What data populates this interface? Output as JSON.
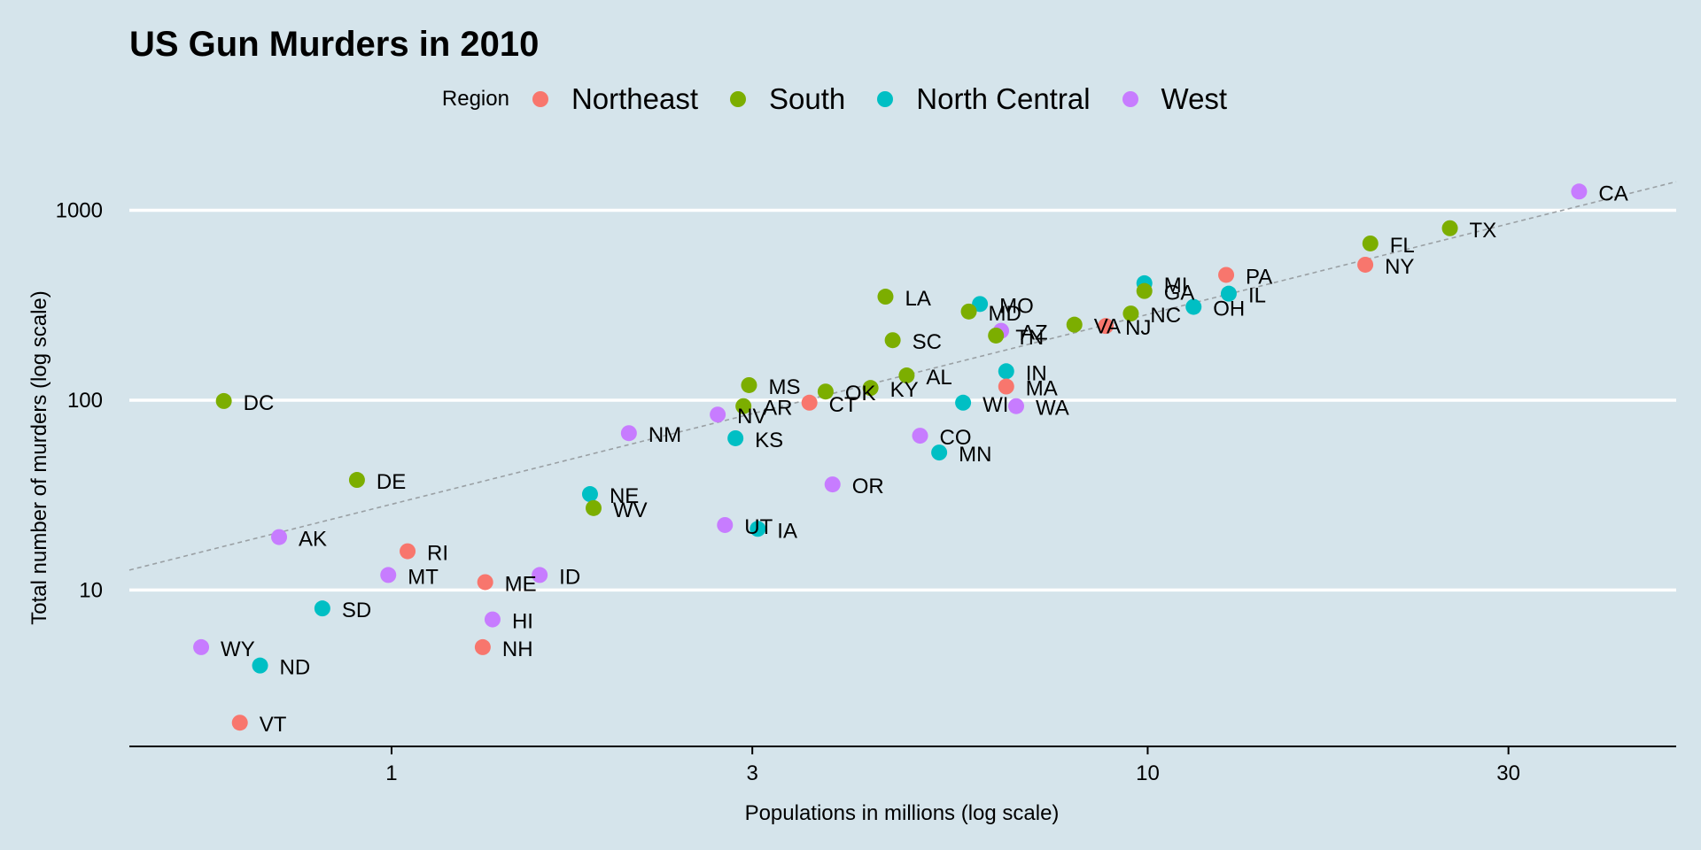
{
  "chart_data": {
    "type": "scatter",
    "title": "US Gun Murders in 2010",
    "xlabel": "Populations in millions (log scale)",
    "ylabel": "Total number of murders (log scale)",
    "x_scale": "log10",
    "y_scale": "log10",
    "xlim": [
      0.45,
      50
    ],
    "ylim": [
      1.5,
      2300
    ],
    "x_ticks": [
      1,
      3,
      10,
      30
    ],
    "x_tick_labels": [
      "1",
      "3",
      "10",
      "30"
    ],
    "y_ticks": [
      10,
      100,
      1000
    ],
    "y_tick_labels": [
      "10",
      "100",
      "1000"
    ],
    "grid": "horizontal major",
    "legend": {
      "title": "Region",
      "position": "top",
      "entries": [
        {
          "name": "Northeast",
          "color": "#f8766d"
        },
        {
          "name": "South",
          "color": "#7cae00"
        },
        {
          "name": "North Central",
          "color": "#00bfc4"
        },
        {
          "name": "West",
          "color": "#c77cff"
        }
      ]
    },
    "reference_line": {
      "style": "dashed",
      "color": "#9aa0a4",
      "description": "national average murder rate",
      "slope": 1,
      "intercept_rate": 28.3
    },
    "points": [
      {
        "label": "CA",
        "region": "West",
        "x": 37.2,
        "y": 1257
      },
      {
        "label": "TX",
        "region": "South",
        "x": 25.1,
        "y": 805
      },
      {
        "label": "FL",
        "region": "South",
        "x": 19.7,
        "y": 669
      },
      {
        "label": "NY",
        "region": "Northeast",
        "x": 19.4,
        "y": 517
      },
      {
        "label": "PA",
        "region": "Northeast",
        "x": 12.7,
        "y": 457
      },
      {
        "label": "MI",
        "region": "North Central",
        "x": 9.9,
        "y": 413
      },
      {
        "label": "GA",
        "region": "South",
        "x": 9.9,
        "y": 376
      },
      {
        "label": "IL",
        "region": "North Central",
        "x": 12.8,
        "y": 364
      },
      {
        "label": "OH",
        "region": "North Central",
        "x": 11.5,
        "y": 310
      },
      {
        "label": "NC",
        "region": "South",
        "x": 9.5,
        "y": 286
      },
      {
        "label": "NJ",
        "region": "Northeast",
        "x": 8.8,
        "y": 246
      },
      {
        "label": "VA",
        "region": "South",
        "x": 8.0,
        "y": 250
      },
      {
        "label": "LA",
        "region": "South",
        "x": 4.5,
        "y": 351
      },
      {
        "label": "MO",
        "region": "North Central",
        "x": 6.0,
        "y": 321
      },
      {
        "label": "MD",
        "region": "South",
        "x": 5.8,
        "y": 293
      },
      {
        "label": "AZ",
        "region": "West",
        "x": 6.4,
        "y": 232
      },
      {
        "label": "TN",
        "region": "South",
        "x": 6.3,
        "y": 219
      },
      {
        "label": "SC",
        "region": "South",
        "x": 4.6,
        "y": 207
      },
      {
        "label": "IN",
        "region": "North Central",
        "x": 6.5,
        "y": 142
      },
      {
        "label": "AL",
        "region": "South",
        "x": 4.8,
        "y": 135
      },
      {
        "label": "MA",
        "region": "Northeast",
        "x": 6.5,
        "y": 118
      },
      {
        "label": "MS",
        "region": "South",
        "x": 2.97,
        "y": 120
      },
      {
        "label": "OK",
        "region": "South",
        "x": 3.75,
        "y": 111
      },
      {
        "label": "KY",
        "region": "South",
        "x": 4.3,
        "y": 116
      },
      {
        "label": "WI",
        "region": "North Central",
        "x": 5.7,
        "y": 97
      },
      {
        "label": "WA",
        "region": "West",
        "x": 6.7,
        "y": 93
      },
      {
        "label": "CT",
        "region": "Northeast",
        "x": 3.57,
        "y": 97
      },
      {
        "label": "AR",
        "region": "South",
        "x": 2.92,
        "y": 93
      },
      {
        "label": "NV",
        "region": "West",
        "x": 2.7,
        "y": 84
      },
      {
        "label": "DC",
        "region": "South",
        "x": 0.6,
        "y": 99
      },
      {
        "label": "NM",
        "region": "West",
        "x": 2.06,
        "y": 67
      },
      {
        "label": "KS",
        "region": "North Central",
        "x": 2.85,
        "y": 63
      },
      {
        "label": "CO",
        "region": "West",
        "x": 5.0,
        "y": 65
      },
      {
        "label": "MN",
        "region": "North Central",
        "x": 5.3,
        "y": 53
      },
      {
        "label": "OR",
        "region": "West",
        "x": 3.83,
        "y": 36
      },
      {
        "label": "DE",
        "region": "South",
        "x": 0.9,
        "y": 38
      },
      {
        "label": "NE",
        "region": "North Central",
        "x": 1.83,
        "y": 32
      },
      {
        "label": "WV",
        "region": "South",
        "x": 1.85,
        "y": 27
      },
      {
        "label": "UT",
        "region": "West",
        "x": 2.76,
        "y": 22
      },
      {
        "label": "IA",
        "region": "North Central",
        "x": 3.05,
        "y": 21
      },
      {
        "label": "AK",
        "region": "West",
        "x": 0.71,
        "y": 19
      },
      {
        "label": "RI",
        "region": "Northeast",
        "x": 1.05,
        "y": 16
      },
      {
        "label": "MT",
        "region": "West",
        "x": 0.99,
        "y": 12
      },
      {
        "label": "ID",
        "region": "West",
        "x": 1.57,
        "y": 12
      },
      {
        "label": "ME",
        "region": "Northeast",
        "x": 1.33,
        "y": 11
      },
      {
        "label": "SD",
        "region": "North Central",
        "x": 0.81,
        "y": 8
      },
      {
        "label": "HI",
        "region": "West",
        "x": 1.36,
        "y": 7
      },
      {
        "label": "NH",
        "region": "Northeast",
        "x": 1.32,
        "y": 5
      },
      {
        "label": "WY",
        "region": "West",
        "x": 0.56,
        "y": 5
      },
      {
        "label": "ND",
        "region": "North Central",
        "x": 0.67,
        "y": 4
      },
      {
        "label": "VT",
        "region": "Northeast",
        "x": 0.63,
        "y": 2
      }
    ]
  }
}
